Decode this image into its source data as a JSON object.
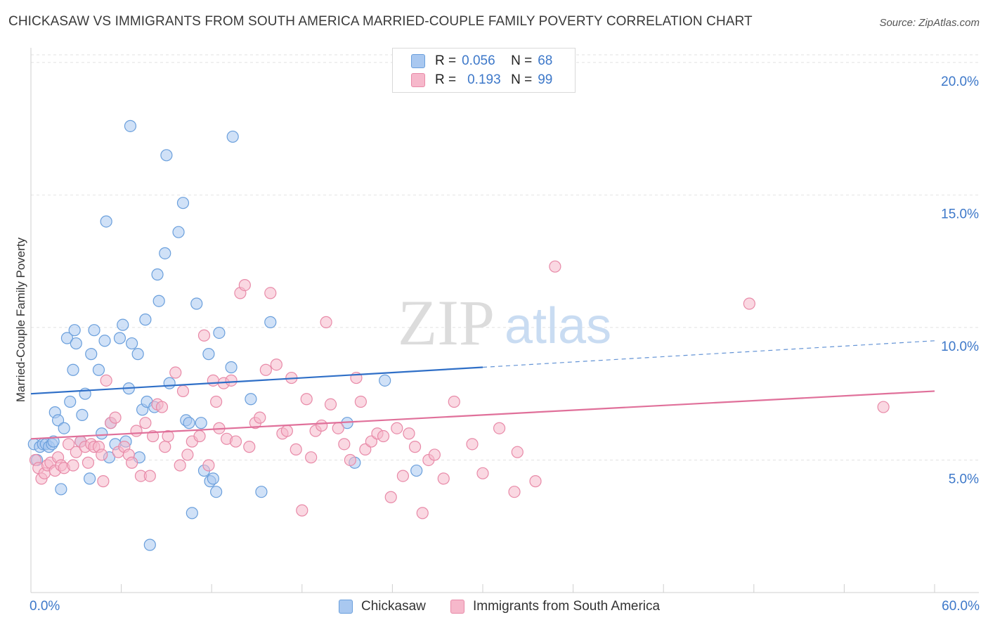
{
  "title": "CHICKASAW VS IMMIGRANTS FROM SOUTH AMERICA MARRIED-COUPLE FAMILY POVERTY CORRELATION CHART",
  "source": "Source: ZipAtlas.com",
  "watermark": {
    "zip": "ZIP",
    "atlas": "atlas"
  },
  "legend": {
    "r_label": "R =",
    "n_label": "N =",
    "rows": [
      {
        "r": "0.056",
        "n": "68"
      },
      {
        "r": "0.193",
        "n": "99"
      }
    ]
  },
  "colors": {
    "blue_fill": "#a9c8f0",
    "blue_stroke": "#6a9fdc",
    "blue_line": "#2f6fc7",
    "pink_fill": "#f6b8cb",
    "pink_stroke": "#e88aa8",
    "pink_line": "#e0709a",
    "tick_label": "#3d78c9",
    "grid": "#e2e2e2"
  },
  "chart_data": {
    "type": "scatter",
    "ylabel": "Married-Couple Family Poverty",
    "xlim": [
      0,
      60
    ],
    "ylim": [
      0,
      20.5
    ],
    "y_ticks": [
      5,
      10,
      15,
      20
    ],
    "y_tick_labels": [
      "5.0%",
      "10.0%",
      "15.0%",
      "20.0%"
    ],
    "x_tick_labels": {
      "left": "0.0%",
      "right": "60.0%"
    },
    "grid": true,
    "legend_position": "top-center",
    "series": [
      {
        "name": "Chickasaw",
        "color": "blue",
        "r": 0.056,
        "n": 68,
        "trend": {
          "x0": 0,
          "y0": 7.5,
          "x1": 30,
          "y1": 8.5,
          "x_dash_end": 60,
          "y_dash_end": 9.5
        },
        "points": [
          [
            0.2,
            5.6
          ],
          [
            0.4,
            5.0
          ],
          [
            0.6,
            5.5
          ],
          [
            0.8,
            5.6
          ],
          [
            1.0,
            5.6
          ],
          [
            1.2,
            5.5
          ],
          [
            1.4,
            5.6
          ],
          [
            1.5,
            5.7
          ],
          [
            1.6,
            6.8
          ],
          [
            1.8,
            6.5
          ],
          [
            2.0,
            3.9
          ],
          [
            2.2,
            6.2
          ],
          [
            2.4,
            9.6
          ],
          [
            2.6,
            7.2
          ],
          [
            2.8,
            8.4
          ],
          [
            2.9,
            9.9
          ],
          [
            3.0,
            9.4
          ],
          [
            3.3,
            5.7
          ],
          [
            3.4,
            6.7
          ],
          [
            3.6,
            7.5
          ],
          [
            3.9,
            4.3
          ],
          [
            4.0,
            9.0
          ],
          [
            4.2,
            9.9
          ],
          [
            4.5,
            8.4
          ],
          [
            4.7,
            6.0
          ],
          [
            4.9,
            9.5
          ],
          [
            5.0,
            14.0
          ],
          [
            5.2,
            5.1
          ],
          [
            5.3,
            6.4
          ],
          [
            5.6,
            5.6
          ],
          [
            5.9,
            9.6
          ],
          [
            6.1,
            10.1
          ],
          [
            6.3,
            5.7
          ],
          [
            6.5,
            7.7
          ],
          [
            6.6,
            17.6
          ],
          [
            6.7,
            9.4
          ],
          [
            7.1,
            9.0
          ],
          [
            7.2,
            5.1
          ],
          [
            7.4,
            6.9
          ],
          [
            7.6,
            10.3
          ],
          [
            7.7,
            7.2
          ],
          [
            7.9,
            1.8
          ],
          [
            8.2,
            7.0
          ],
          [
            8.4,
            12.0
          ],
          [
            8.5,
            11.0
          ],
          [
            8.9,
            12.8
          ],
          [
            9.0,
            16.5
          ],
          [
            9.2,
            7.9
          ],
          [
            9.8,
            13.6
          ],
          [
            10.1,
            14.7
          ],
          [
            10.3,
            6.5
          ],
          [
            10.5,
            6.4
          ],
          [
            10.7,
            3.0
          ],
          [
            11.0,
            10.9
          ],
          [
            11.3,
            6.4
          ],
          [
            11.5,
            4.6
          ],
          [
            11.8,
            9.0
          ],
          [
            11.9,
            4.2
          ],
          [
            12.1,
            4.3
          ],
          [
            12.3,
            3.8
          ],
          [
            12.5,
            9.8
          ],
          [
            13.3,
            8.5
          ],
          [
            13.4,
            17.2
          ],
          [
            14.6,
            7.3
          ],
          [
            15.3,
            3.8
          ],
          [
            15.9,
            10.2
          ],
          [
            21.0,
            6.4
          ],
          [
            21.5,
            4.9
          ],
          [
            23.5,
            8.0
          ],
          [
            25.6,
            4.6
          ]
        ]
      },
      {
        "name": "Immigrants from South America",
        "color": "pink",
        "r": 0.193,
        "n": 99,
        "trend": {
          "x0": 0,
          "y0": 5.8,
          "x1": 60,
          "y1": 7.6
        },
        "points": [
          [
            0.3,
            5.0
          ],
          [
            0.5,
            4.7
          ],
          [
            0.7,
            4.3
          ],
          [
            0.9,
            4.5
          ],
          [
            1.1,
            4.8
          ],
          [
            1.3,
            4.9
          ],
          [
            1.6,
            4.6
          ],
          [
            1.8,
            5.1
          ],
          [
            2.0,
            4.8
          ],
          [
            2.2,
            4.7
          ],
          [
            2.5,
            5.6
          ],
          [
            2.8,
            4.8
          ],
          [
            3.0,
            5.3
          ],
          [
            3.3,
            5.7
          ],
          [
            3.6,
            5.5
          ],
          [
            3.8,
            4.9
          ],
          [
            4.0,
            5.6
          ],
          [
            4.2,
            5.5
          ],
          [
            4.5,
            5.5
          ],
          [
            4.7,
            5.2
          ],
          [
            4.8,
            4.2
          ],
          [
            5.0,
            8.0
          ],
          [
            5.3,
            6.4
          ],
          [
            5.6,
            6.6
          ],
          [
            5.8,
            5.3
          ],
          [
            6.2,
            5.5
          ],
          [
            6.5,
            5.2
          ],
          [
            6.7,
            4.9
          ],
          [
            7.0,
            6.1
          ],
          [
            7.3,
            4.4
          ],
          [
            7.6,
            6.4
          ],
          [
            7.9,
            4.4
          ],
          [
            8.1,
            5.9
          ],
          [
            8.4,
            7.1
          ],
          [
            8.7,
            7.0
          ],
          [
            8.9,
            5.5
          ],
          [
            9.1,
            5.9
          ],
          [
            9.6,
            8.3
          ],
          [
            9.9,
            4.8
          ],
          [
            10.1,
            7.6
          ],
          [
            10.4,
            5.2
          ],
          [
            10.7,
            5.7
          ],
          [
            11.2,
            5.9
          ],
          [
            11.5,
            9.7
          ],
          [
            11.8,
            4.8
          ],
          [
            12.1,
            8.0
          ],
          [
            12.3,
            7.2
          ],
          [
            12.5,
            6.2
          ],
          [
            12.8,
            7.9
          ],
          [
            13.0,
            5.8
          ],
          [
            13.3,
            8.0
          ],
          [
            13.6,
            5.7
          ],
          [
            13.9,
            11.3
          ],
          [
            14.2,
            11.6
          ],
          [
            14.5,
            5.5
          ],
          [
            14.9,
            6.4
          ],
          [
            15.2,
            6.6
          ],
          [
            15.6,
            8.4
          ],
          [
            15.9,
            11.3
          ],
          [
            16.3,
            8.6
          ],
          [
            16.7,
            6.0
          ],
          [
            17.0,
            6.1
          ],
          [
            17.3,
            8.1
          ],
          [
            17.6,
            5.4
          ],
          [
            18.0,
            3.1
          ],
          [
            18.3,
            7.3
          ],
          [
            18.6,
            5.1
          ],
          [
            18.9,
            6.1
          ],
          [
            19.3,
            6.3
          ],
          [
            19.6,
            10.2
          ],
          [
            19.9,
            7.1
          ],
          [
            20.4,
            6.2
          ],
          [
            20.8,
            5.6
          ],
          [
            21.2,
            5.0
          ],
          [
            21.6,
            8.1
          ],
          [
            21.9,
            7.2
          ],
          [
            22.2,
            5.4
          ],
          [
            22.6,
            5.7
          ],
          [
            23.0,
            6.0
          ],
          [
            23.4,
            5.9
          ],
          [
            23.9,
            3.6
          ],
          [
            24.3,
            6.2
          ],
          [
            24.7,
            4.4
          ],
          [
            25.1,
            6.0
          ],
          [
            25.5,
            5.5
          ],
          [
            26.0,
            3.0
          ],
          [
            26.4,
            5.0
          ],
          [
            26.8,
            5.2
          ],
          [
            27.4,
            4.3
          ],
          [
            28.1,
            7.2
          ],
          [
            29.3,
            5.6
          ],
          [
            30.0,
            4.5
          ],
          [
            31.1,
            6.2
          ],
          [
            32.1,
            3.8
          ],
          [
            32.3,
            5.3
          ],
          [
            33.5,
            4.2
          ],
          [
            34.8,
            12.3
          ],
          [
            47.7,
            10.9
          ],
          [
            56.6,
            7.0
          ]
        ]
      }
    ]
  }
}
